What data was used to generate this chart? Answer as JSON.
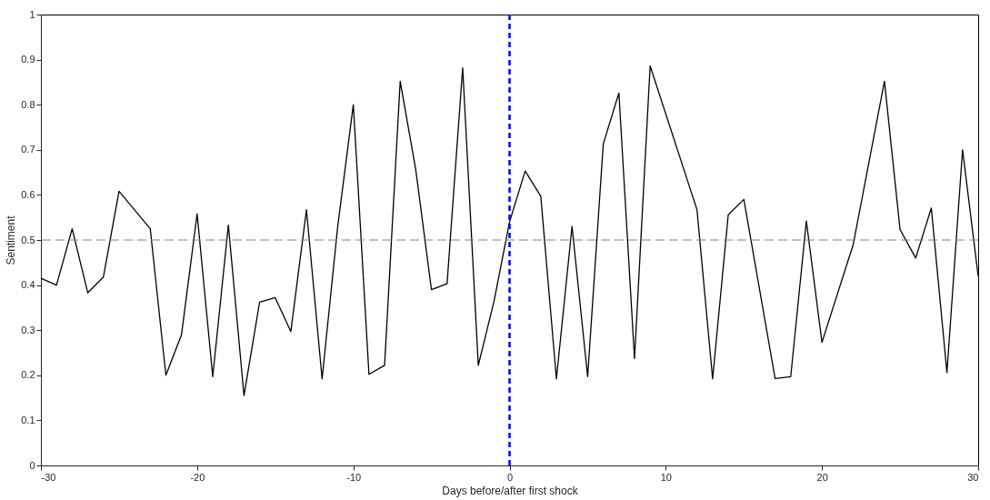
{
  "chart_data": {
    "type": "line",
    "xlabel": "Days before/after first shock",
    "ylabel": "Sentiment",
    "x": [
      -30,
      -29,
      -28,
      -27,
      -26,
      -25,
      -23,
      -22,
      -21,
      -20,
      -19,
      -18,
      -17,
      -16,
      -15,
      -14,
      -13,
      -12,
      -11,
      -10,
      -9,
      -8,
      -7,
      -6,
      -5,
      -4,
      -3,
      -2,
      -1,
      0,
      1,
      2,
      3,
      4,
      5,
      6,
      7,
      8,
      9,
      12,
      13,
      14,
      15,
      17,
      18,
      19,
      20,
      22,
      24,
      25,
      26,
      27,
      28,
      29,
      30
    ],
    "series": [
      {
        "color": "#000000",
        "values": [
          0.415,
          0.4,
          0.525,
          0.383,
          0.418,
          0.608,
          0.525,
          0.2,
          0.29,
          0.558,
          0.197,
          0.533,
          0.155,
          0.362,
          0.372,
          0.297,
          0.567,
          0.192,
          0.53,
          0.8,
          0.202,
          0.222,
          0.852,
          0.655,
          0.39,
          0.403,
          0.882,
          0.222,
          0.363,
          0.54,
          0.653,
          0.597,
          0.192,
          0.53,
          0.197,
          0.713,
          0.826,
          0.237,
          0.886,
          0.567,
          0.192,
          0.556,
          0.59,
          0.193,
          0.197,
          0.542,
          0.273,
          0.49,
          0.852,
          0.523,
          0.46,
          0.571,
          0.206,
          0.7,
          0.42
        ]
      }
    ],
    "xlim": [
      -30,
      30
    ],
    "xticks": [
      -30,
      -20,
      -10,
      0,
      10,
      20,
      30
    ],
    "ylim": [
      0,
      1
    ],
    "yticks": [
      0,
      0.1,
      0.2,
      0.3,
      0.4,
      0.5,
      0.6,
      0.7,
      0.8,
      0.9,
      1
    ],
    "grid": false,
    "ref_lines": [
      {
        "axis": "y",
        "value": 0.5,
        "color": "#808080",
        "line_style": "dashed"
      },
      {
        "axis": "x",
        "value": 0,
        "color": "#0000ff",
        "line_style": "dashed"
      }
    ]
  }
}
